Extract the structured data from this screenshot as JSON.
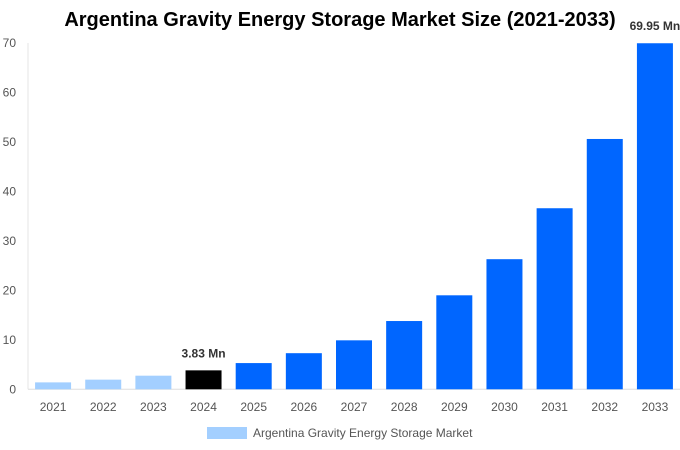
{
  "chart_data": {
    "type": "bar",
    "title": "Argentina Gravity Energy Storage Market Size (2021-2033)",
    "categories": [
      "2021",
      "2022",
      "2023",
      "2024",
      "2025",
      "2026",
      "2027",
      "2028",
      "2029",
      "2030",
      "2031",
      "2032",
      "2033"
    ],
    "series": [
      {
        "name": "Argentina Gravity Energy Storage Market",
        "values": [
          1.4,
          1.95,
          2.75,
          3.83,
          5.3,
          7.3,
          9.9,
          13.8,
          19.0,
          26.3,
          36.6,
          50.6,
          69.95
        ]
      }
    ],
    "data_labels": {
      "3": "3.83 Mn",
      "12": "69.95 Mn"
    },
    "ylim": [
      0,
      70
    ],
    "yticks": [
      0,
      10,
      20,
      30,
      40,
      50,
      60,
      70
    ],
    "xlabel": "",
    "ylabel": "",
    "grid": false,
    "legend": "bottom",
    "colors": {
      "historical": "#a3cfff",
      "current": "#000000",
      "forecast": "#0066ff"
    }
  }
}
